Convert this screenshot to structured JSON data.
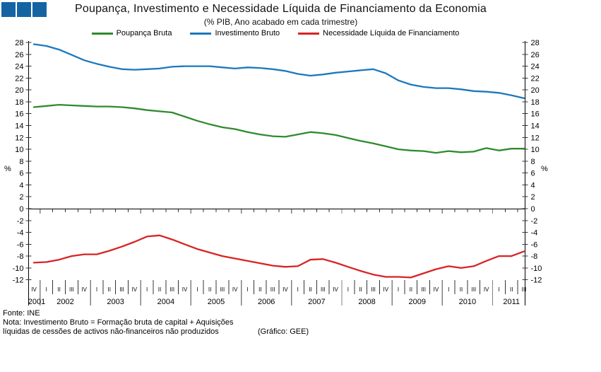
{
  "header": {
    "title": "Poupança, Investimento e Necessidade Líquida de Financiamento da Economia",
    "subtitle": "(% PIB, Ano acabado em cada trimestre)",
    "logo_color": "#1464A4",
    "logo_square_count": 3
  },
  "footer": {
    "source": "Fonte: INE",
    "note_line1": "Nota: Investimento Bruto = Formação bruta de capital + Aquisições",
    "note_line2": "líquidas de cessões de activos não-financeiros não produzidos",
    "credit": "(Gráfico: GEE)"
  },
  "chart_data": {
    "type": "line",
    "title": "Poupança, Investimento e Necessidade Líquida de Financiamento da Economia",
    "subtitle": "(% PIB, Ano acabado em cada trimestre)",
    "grid": false,
    "legend_position": "top",
    "ylim": [
      -12,
      28
    ],
    "ytick_step": 2,
    "y_unit_left": "%",
    "y_unit_right": "%",
    "x_year_groups": [
      {
        "year": "2001",
        "quarters": [
          "IV"
        ]
      },
      {
        "year": "2002",
        "quarters": [
          "I",
          "II",
          "III",
          "IV"
        ]
      },
      {
        "year": "2003",
        "quarters": [
          "I",
          "II",
          "III",
          "IV"
        ]
      },
      {
        "year": "2004",
        "quarters": [
          "I",
          "II",
          "III",
          "IV"
        ]
      },
      {
        "year": "2005",
        "quarters": [
          "I",
          "II",
          "III",
          "IV"
        ]
      },
      {
        "year": "2006",
        "quarters": [
          "I",
          "II",
          "III",
          "IV"
        ]
      },
      {
        "year": "2007",
        "quarters": [
          "I",
          "II",
          "III",
          "IV"
        ]
      },
      {
        "year": "2008",
        "quarters": [
          "I",
          "II",
          "III",
          "IV"
        ]
      },
      {
        "year": "2009",
        "quarters": [
          "I",
          "II",
          "III",
          "IV"
        ]
      },
      {
        "year": "2010",
        "quarters": [
          "I",
          "II",
          "III",
          "IV"
        ]
      },
      {
        "year": "2011",
        "quarters": [
          "I",
          "II",
          "III"
        ]
      }
    ],
    "series": [
      {
        "name": "Poupança Bruta",
        "color": "#2E8B2E",
        "values": [
          17.1,
          17.3,
          17.5,
          17.4,
          17.3,
          17.2,
          17.2,
          17.1,
          16.9,
          16.6,
          16.4,
          16.2,
          15.5,
          14.8,
          14.2,
          13.7,
          13.4,
          12.9,
          12.5,
          12.2,
          12.1,
          12.5,
          12.9,
          12.7,
          12.4,
          11.9,
          11.4,
          11.0,
          10.5,
          10.0,
          9.8,
          9.7,
          9.4,
          9.7,
          9.5,
          9.6,
          10.2,
          9.8,
          10.1,
          10.1
        ]
      },
      {
        "name": "Investimento Bruto",
        "color": "#1C78BE",
        "values": [
          27.7,
          27.4,
          26.8,
          25.9,
          25.0,
          24.4,
          23.9,
          23.5,
          23.4,
          23.5,
          23.6,
          23.9,
          24.0,
          24.0,
          24.0,
          23.8,
          23.6,
          23.8,
          23.7,
          23.5,
          23.2,
          22.7,
          22.4,
          22.6,
          22.9,
          23.1,
          23.3,
          23.5,
          22.8,
          21.6,
          20.9,
          20.5,
          20.3,
          20.3,
          20.1,
          19.8,
          19.7,
          19.5,
          19.1,
          18.6
        ]
      },
      {
        "name": "Necessidade Líquida de Financiamento",
        "color": "#D92323",
        "values": [
          -9.1,
          -9.0,
          -8.6,
          -8.0,
          -7.7,
          -7.7,
          -7.1,
          -6.4,
          -5.6,
          -4.7,
          -4.5,
          -5.2,
          -6.0,
          -6.8,
          -7.4,
          -8.0,
          -8.4,
          -8.8,
          -9.2,
          -9.6,
          -9.8,
          -9.7,
          -8.6,
          -8.5,
          -9.1,
          -9.8,
          -10.5,
          -11.1,
          -11.5,
          -11.5,
          -11.6,
          -10.9,
          -10.2,
          -9.7,
          -10.0,
          -9.7,
          -8.8,
          -8.0,
          -8.0,
          -7.2
        ]
      }
    ]
  }
}
